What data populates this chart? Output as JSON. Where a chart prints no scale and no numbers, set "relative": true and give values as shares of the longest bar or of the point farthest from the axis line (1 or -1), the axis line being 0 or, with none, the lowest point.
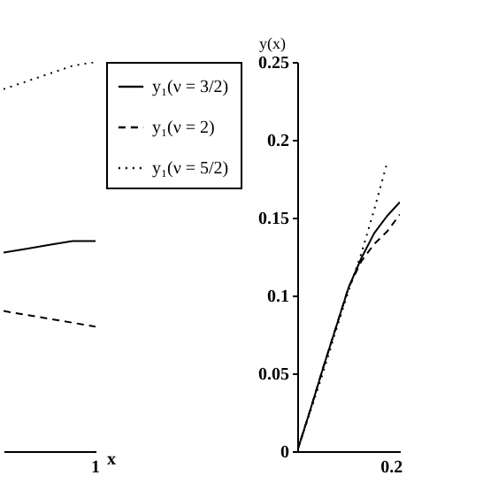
{
  "chart_data": [
    {
      "type": "line",
      "relative": true,
      "xlabel": "x",
      "categories": [
        null,
        null,
        null,
        null,
        null
      ],
      "legend": "top right",
      "annotations": [
        "1"
      ],
      "series": [
        {
          "name": "y₁(ν = 3/2)",
          "color": "#000000",
          "line_style": "solid",
          "values": [
            0.51,
            0.52,
            0.53,
            0.54,
            0.54
          ]
        },
        {
          "name": "y₁(ν = 2)",
          "color": "#000000",
          "line_style": "dashed",
          "values": [
            0.36,
            0.35,
            0.34,
            0.33,
            0.32
          ]
        },
        {
          "name": "y₁(ν = 5/2)",
          "color": "#000000",
          "line_style": "dotted",
          "values": [
            0.93,
            0.95,
            0.97,
            0.99,
            1
          ]
        }
      ]
    },
    {
      "type": "line",
      "ylabel": "y(x)",
      "categories": [
        null,
        null,
        null,
        null,
        null,
        null,
        null,
        null,
        null
      ],
      "ylim": [
        0,
        0.25
      ],
      "yticks": [
        0,
        0.05,
        0.1,
        0.15,
        0.2,
        0.25
      ],
      "annotations": [
        "0.2"
      ],
      "series": [
        {
          "color": "#000000",
          "line_style": "solid",
          "values": [
            0,
            0.026,
            0.053,
            0.079,
            0.105,
            0.124,
            0.14,
            0.151,
            0.16
          ]
        },
        {
          "color": "#000000",
          "line_style": "dashed",
          "values": [
            0,
            0.026,
            0.053,
            0.079,
            0.105,
            0.122,
            0.133,
            0.141,
            0.152
          ]
        },
        {
          "color": "#000000",
          "line_style": "dotted",
          "values": [
            0,
            0.025,
            0.05,
            0.077,
            0.103,
            0.127,
            0.155,
            0.185,
            null
          ]
        }
      ]
    }
  ]
}
